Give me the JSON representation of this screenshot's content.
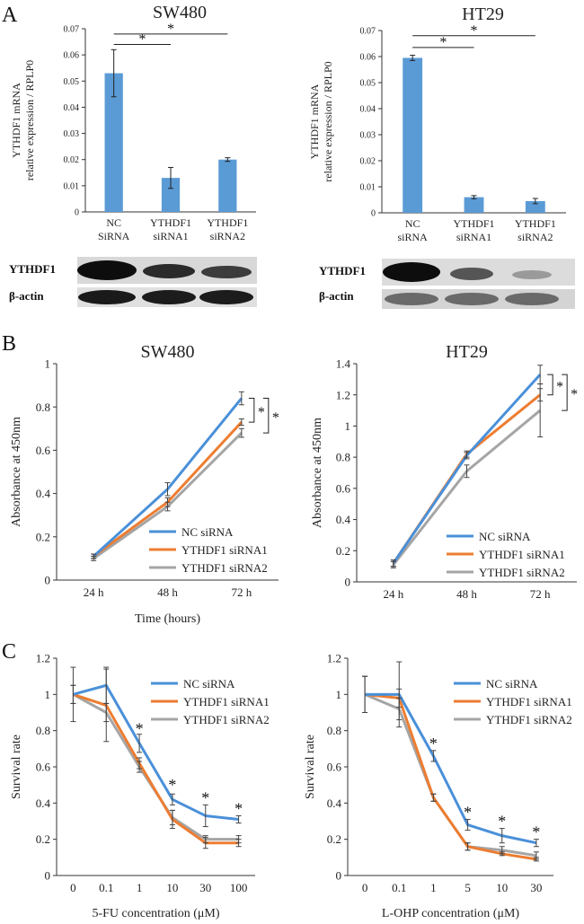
{
  "panel_labels": {
    "a": "A",
    "b": "B",
    "c": "C"
  },
  "blots": {
    "ytdf1_label": "YTHDF1",
    "actin_label": "β-actin"
  },
  "colors": {
    "bar": "#5b9bd5",
    "nc": "#4a90d9",
    "s1": "#ed7d31",
    "s2": "#a5a5a5",
    "axis": "#333333",
    "err": "#222222"
  },
  "chart_data": [
    {
      "id": "a1",
      "type": "bar",
      "title": "SW480",
      "ylabel_lines": [
        "YTHDF1 mRNA",
        "relative expression / RPLP0"
      ],
      "ylim": [
        0,
        0.07
      ],
      "yticks": [
        0,
        0.01,
        0.02,
        0.03,
        0.04,
        0.05,
        0.06,
        0.07
      ],
      "ytick_labels": [
        "0",
        "0.01",
        "0.02",
        "0.03",
        "0.04",
        "0.05",
        "0.06",
        "0.07"
      ],
      "categories": [
        [
          "NC",
          "SiRNA"
        ],
        [
          "YTHDF1",
          "siRNA1"
        ],
        [
          "YTHDF1",
          "siRNA2"
        ]
      ],
      "values": [
        0.053,
        0.013,
        0.02
      ],
      "errors": [
        0.009,
        0.004,
        0.0007
      ],
      "significance": [
        {
          "from": 0,
          "to": 1,
          "y": 0.064,
          "label": "*"
        },
        {
          "from": 0,
          "to": 2,
          "y": 0.068,
          "label": "*"
        }
      ]
    },
    {
      "id": "a2",
      "type": "bar",
      "title": "HT29",
      "ylabel_lines": [
        "YTHDF1 mRNA",
        "relative expression / RPLP0"
      ],
      "ylim": [
        0,
        0.07
      ],
      "yticks": [
        0,
        0.01,
        0.02,
        0.03,
        0.04,
        0.05,
        0.06,
        0.07
      ],
      "ytick_labels": [
        "0",
        "0.01",
        "0.02",
        "0.03",
        "0.04",
        "0.05",
        "0.06",
        "0.07"
      ],
      "categories": [
        [
          "NC",
          "siRNA"
        ],
        [
          "YTHDF1",
          "siRNA1"
        ],
        [
          "YTHDF1",
          "siRNA2"
        ]
      ],
      "values": [
        0.0595,
        0.006,
        0.0045
      ],
      "errors": [
        0.001,
        0.0006,
        0.001
      ],
      "significance": [
        {
          "from": 0,
          "to": 1,
          "y": 0.0635,
          "label": "*"
        },
        {
          "from": 0,
          "to": 2,
          "y": 0.068,
          "label": "*"
        }
      ]
    },
    {
      "id": "b1",
      "type": "line",
      "title": "SW480",
      "ylabel": "Absorbance at 450nm",
      "xlabel": "Time (hours)",
      "categories": [
        "24 h",
        "48 h",
        "72 h"
      ],
      "ylim": [
        0,
        1
      ],
      "yticks": [
        0,
        0.2,
        0.4,
        0.6,
        0.8,
        1
      ],
      "ytick_labels": [
        "0",
        "0.2",
        "0.4",
        "0.6",
        "0.8",
        "1"
      ],
      "series": [
        {
          "name": "NC siRNA",
          "values": [
            0.11,
            0.42,
            0.84
          ],
          "errors": [
            0.01,
            0.03,
            0.03
          ]
        },
        {
          "name": "YTHDF1 siRNA1",
          "values": [
            0.11,
            0.36,
            0.73
          ],
          "errors": [
            0.01,
            0.02,
            0.015
          ]
        },
        {
          "name": "YTHDF1 siRNA2",
          "values": [
            0.1,
            0.34,
            0.68
          ],
          "errors": [
            0.01,
            0.02,
            0.02
          ]
        }
      ],
      "legend": "bottom-right",
      "brackets": [
        {
          "from": 0.84,
          "to": 0.73,
          "label": "*"
        },
        {
          "from": 0.84,
          "to": 0.68,
          "label": "*"
        }
      ]
    },
    {
      "id": "b2",
      "type": "line",
      "title": "HT29",
      "ylabel": "Absorbance at 450nm",
      "xlabel": "",
      "categories": [
        "24 h",
        "48 h",
        "72 h"
      ],
      "ylim": [
        0,
        1.4
      ],
      "yticks": [
        0,
        0.2,
        0.4,
        0.6,
        0.8,
        1,
        1.2,
        1.4
      ],
      "ytick_labels": [
        "0",
        "0.2",
        "0.4",
        "0.6",
        "0.8",
        "1",
        "1.2",
        "1.4"
      ],
      "series": [
        {
          "name": "NC siRNA",
          "values": [
            0.12,
            0.81,
            1.33
          ],
          "errors": [
            0.02,
            0.02,
            0.06
          ]
        },
        {
          "name": "YTHDF1 siRNA1",
          "values": [
            0.12,
            0.82,
            1.2
          ],
          "errors": [
            0.02,
            0.02,
            0.04
          ]
        },
        {
          "name": "YTHDF1 siRNA2",
          "values": [
            0.11,
            0.71,
            1.1
          ],
          "errors": [
            0.02,
            0.04,
            0.17
          ]
        }
      ],
      "legend": "bottom-right",
      "brackets": [
        {
          "from": 1.33,
          "to": 1.2,
          "label": "*"
        },
        {
          "from": 1.33,
          "to": 1.1,
          "label": "*"
        }
      ]
    },
    {
      "id": "c1",
      "type": "line",
      "title": "",
      "ylabel": "Survival rate",
      "xlabel": "5-FU concentration (μM)",
      "categories": [
        "0",
        "0.1",
        "1",
        "10",
        "30",
        "100"
      ],
      "ylim": [
        0,
        1.2
      ],
      "yticks": [
        0,
        0.2,
        0.4,
        0.6,
        0.8,
        1,
        1.2
      ],
      "ytick_labels": [
        "0",
        "0.2",
        "0.4",
        "0.6",
        "0.8",
        "1",
        "1.2"
      ],
      "series": [
        {
          "name": "NC siRNA",
          "values": [
            1.0,
            1.05,
            0.73,
            0.42,
            0.33,
            0.31
          ],
          "errors": [
            0.15,
            0.1,
            0.05,
            0.03,
            0.06,
            0.02
          ]
        },
        {
          "name": "YTHDF1 siRNA1",
          "values": [
            1.0,
            0.94,
            0.62,
            0.31,
            0.18,
            0.18
          ],
          "errors": [
            0.05,
            0.2,
            0.03,
            0.05,
            0.03,
            0.02
          ]
        },
        {
          "name": "YTHDF1 siRNA2",
          "values": [
            1.0,
            0.9,
            0.6,
            0.32,
            0.2,
            0.2
          ],
          "errors": [
            0.05,
            0.05,
            0.03,
            0.04,
            0.02,
            0.02
          ]
        }
      ],
      "legend": "top-right",
      "stars": [
        {
          "index": 2,
          "y": 0.8,
          "label": "*"
        },
        {
          "index": 3,
          "y": 0.49,
          "label": "*"
        },
        {
          "index": 4,
          "y": 0.42,
          "label": "*"
        },
        {
          "index": 5,
          "y": 0.36,
          "label": "*"
        }
      ]
    },
    {
      "id": "c2",
      "type": "line",
      "title": "",
      "ylabel": "Survival rate",
      "xlabel": "L-OHP concentration (μM)",
      "categories": [
        "0",
        "0.1",
        "1",
        "5",
        "10",
        "30"
      ],
      "ylim": [
        0,
        1.2
      ],
      "yticks": [
        0,
        0.2,
        0.4,
        0.6,
        0.8,
        1,
        1.2
      ],
      "ytick_labels": [
        "0",
        "0.2",
        "0.4",
        "0.6",
        "0.8",
        "1",
        "1.2"
      ],
      "series": [
        {
          "name": "NC siRNA",
          "values": [
            1.0,
            1.0,
            0.66,
            0.28,
            0.22,
            0.18
          ],
          "errors": [
            0.1,
            0.18,
            0.03,
            0.03,
            0.04,
            0.02
          ]
        },
        {
          "name": "YTHDF1 siRNA1",
          "values": [
            1.0,
            0.98,
            0.43,
            0.16,
            0.12,
            0.09
          ],
          "errors": [
            0.1,
            0.05,
            0.02,
            0.02,
            0.01,
            0.01
          ]
        },
        {
          "name": "YTHDF1 siRNA2",
          "values": [
            1.0,
            0.92,
            0.43,
            0.16,
            0.14,
            0.11
          ],
          "errors": [
            0.1,
            0.06,
            0.02,
            0.02,
            0.02,
            0.02
          ]
        }
      ],
      "legend": "top-right",
      "stars": [
        {
          "index": 2,
          "y": 0.72,
          "label": "*"
        },
        {
          "index": 3,
          "y": 0.34,
          "label": "*"
        },
        {
          "index": 4,
          "y": 0.29,
          "label": "*"
        },
        {
          "index": 5,
          "y": 0.23,
          "label": "*"
        }
      ]
    }
  ]
}
